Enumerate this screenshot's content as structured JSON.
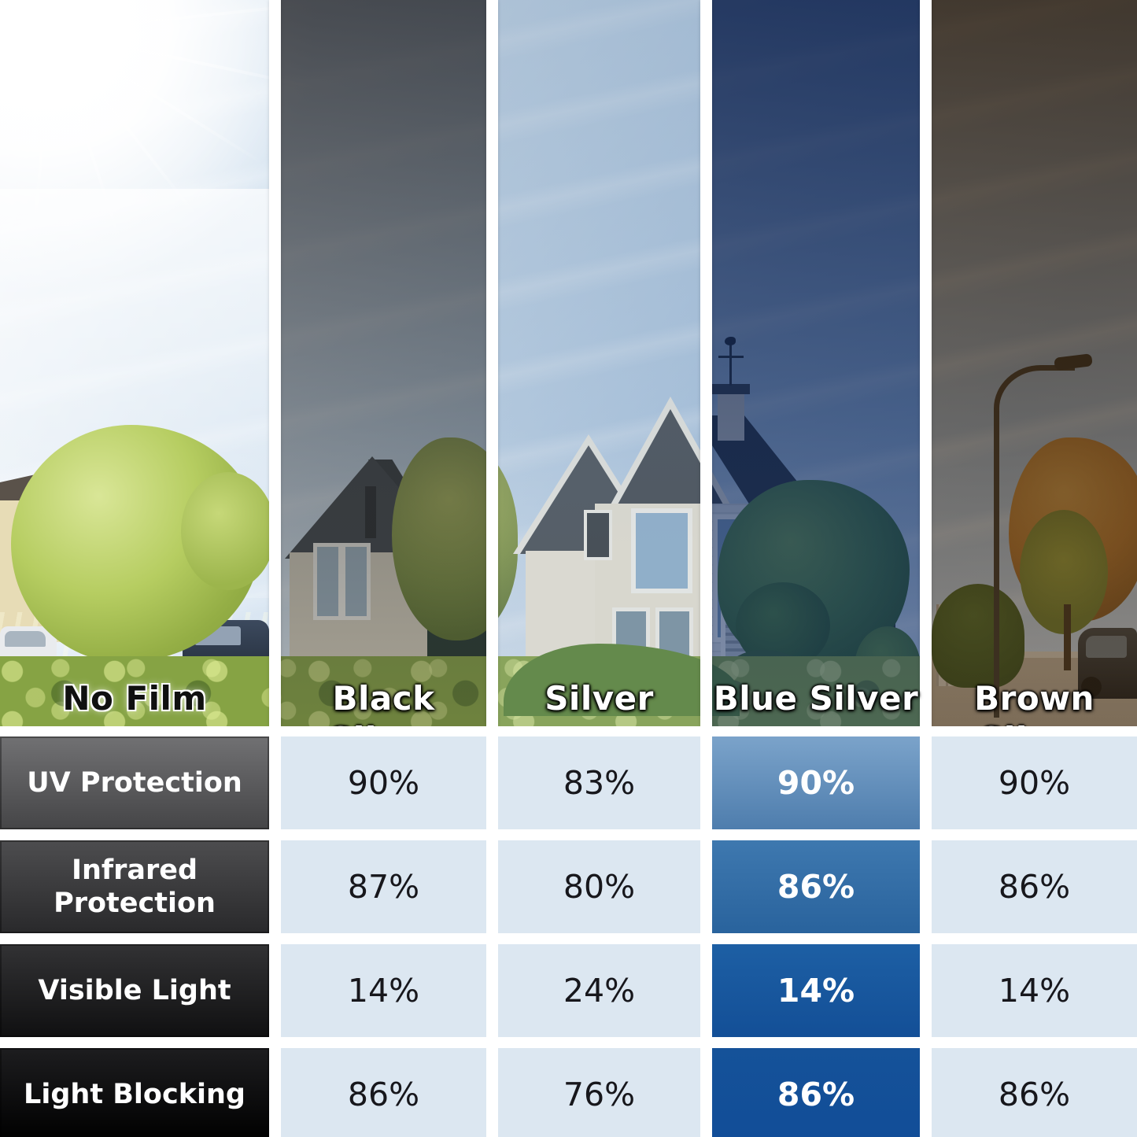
{
  "photo": {
    "film_labels": [
      "No Film",
      "Black Silver",
      "Silver",
      "Blue Silver",
      "Brown Silver"
    ]
  },
  "table": {
    "row_labels": [
      "UV Protection",
      "Infrared Protection",
      "Visible Light",
      "Light Blocking"
    ],
    "column_labels": [
      "Black Silver",
      "Silver",
      "Blue Silver",
      "Brown Silver"
    ],
    "highlighted_column": "Blue Silver",
    "values": [
      [
        "90%",
        "83%",
        "90%",
        "90%"
      ],
      [
        "87%",
        "80%",
        "86%",
        "86%"
      ],
      [
        "14%",
        "24%",
        "14%",
        "14%"
      ],
      [
        "86%",
        "76%",
        "86%",
        "86%"
      ]
    ]
  },
  "colors": {
    "cell_light_blue": "#dce7f1",
    "highlight_blue_light": "#7ba3ca",
    "highlight_blue_dark": "#114d98",
    "label_cell_dark": "#1d1d1f",
    "separator_white": "#ffffff"
  },
  "chart_data": {
    "type": "table",
    "film_options": [
      "No Film",
      "Black Silver",
      "Silver",
      "Blue Silver",
      "Brown Silver"
    ],
    "metrics": [
      "UV Protection",
      "Infrared Protection",
      "Visible Light",
      "Light Blocking"
    ],
    "unit": "%",
    "series": [
      {
        "name": "Black Silver",
        "values": [
          90,
          87,
          14,
          86
        ]
      },
      {
        "name": "Silver",
        "values": [
          83,
          80,
          24,
          76
        ]
      },
      {
        "name": "Blue Silver",
        "values": [
          90,
          86,
          14,
          86
        ]
      },
      {
        "name": "Brown Silver",
        "values": [
          90,
          86,
          14,
          86
        ]
      }
    ],
    "highlighted_series": "Blue Silver"
  }
}
